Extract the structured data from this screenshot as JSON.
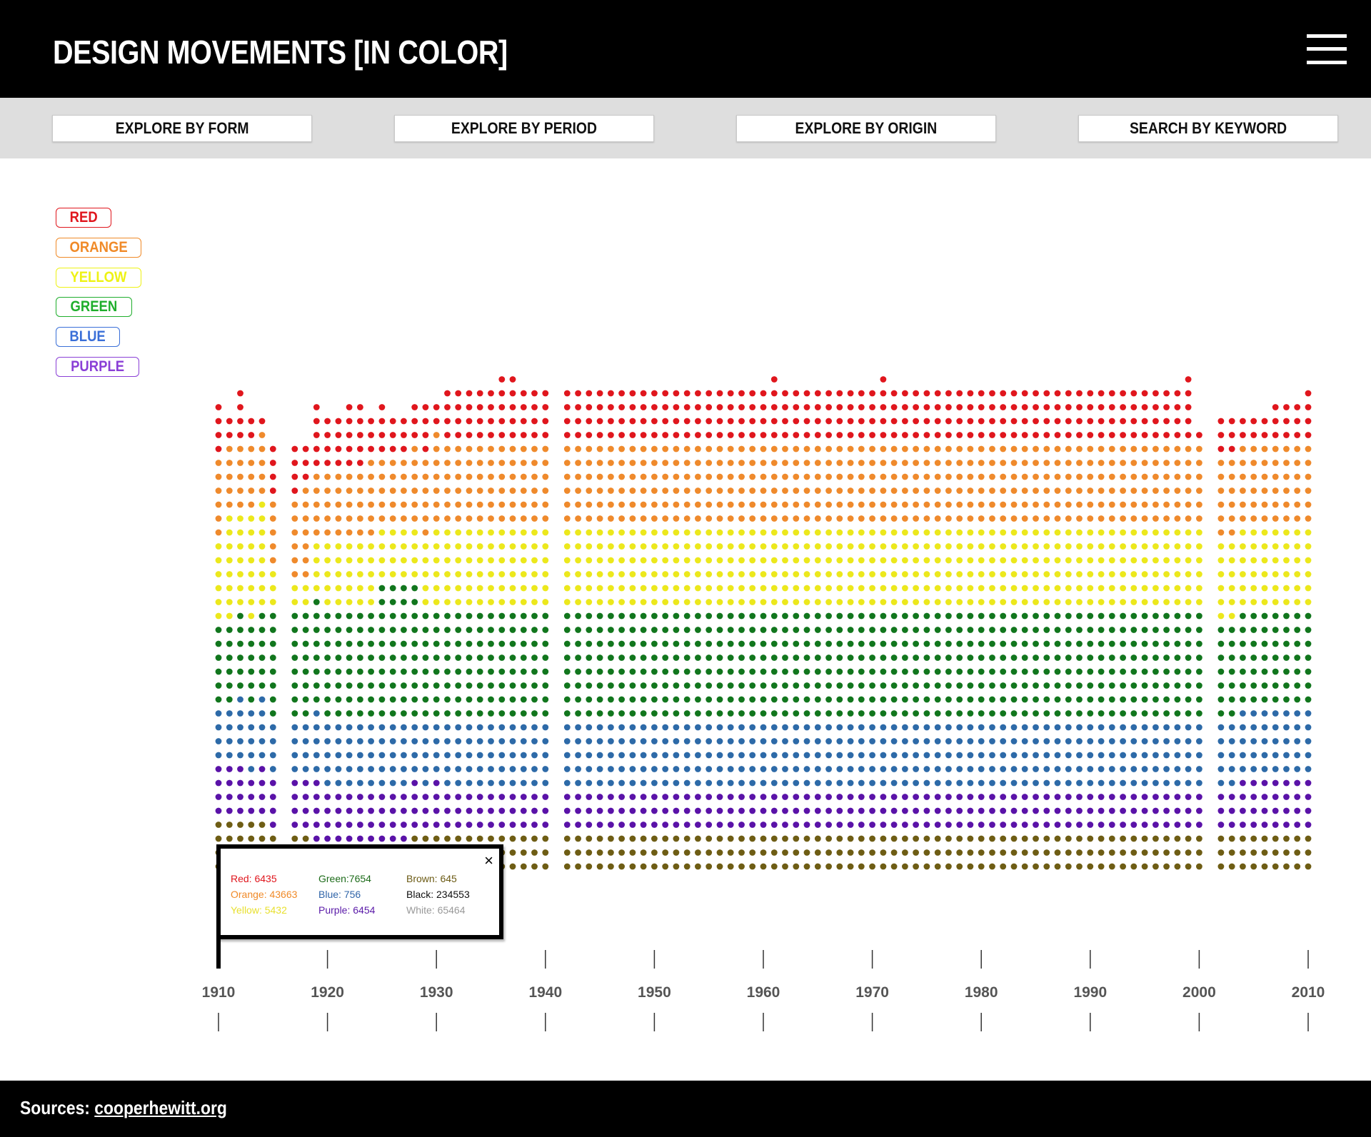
{
  "header": {
    "title": "DESIGN MOVEMENTS [IN COLOR]"
  },
  "nav": {
    "buttons": [
      "EXPLORE BY FORM",
      "EXPLORE BY PERIOD",
      "EXPLORE BY ORIGIN",
      "SEARCH BY KEYWORD"
    ]
  },
  "legend": [
    {
      "label": "RED",
      "color": "#e0161d"
    },
    {
      "label": "ORANGE",
      "color": "#f08a28"
    },
    {
      "label": "YELLOW",
      "color": "#eef214"
    },
    {
      "label": "GREEN",
      "color": "#1fae2c"
    },
    {
      "label": "BLUE",
      "color": "#3a6fd8"
    },
    {
      "label": "PURPLE",
      "color": "#8a3fd6"
    }
  ],
  "tooltip": {
    "rows": [
      {
        "label": "Red: 6435",
        "color": "#e0161d"
      },
      {
        "label": "Green:7654",
        "color": "#1d6b1a"
      },
      {
        "label": "Brown: 645",
        "color": "#6b5a14"
      },
      {
        "label": "Orange: 43663",
        "color": "#f08a28"
      },
      {
        "label": "Blue: 756",
        "color": "#2f64a8"
      },
      {
        "label": "Black: 234553",
        "color": "#111111"
      },
      {
        "label": "Yellow: 5432",
        "color": "#e8e030"
      },
      {
        "label": "Purple: 6454",
        "color": "#5a1aa8"
      },
      {
        "label": "White: 65464",
        "color": "#999999"
      }
    ],
    "close": "×"
  },
  "chart_data": {
    "type": "scatter",
    "description_kind": "stacked dot columns per year",
    "x_ticks": [
      "1910",
      "1920",
      "1930",
      "1940",
      "1950",
      "1960",
      "1970",
      "1980",
      "1990",
      "2000",
      "2010"
    ],
    "dot_colors": {
      "red": "#e0161d",
      "orange": "#ef8a2c",
      "yellow": "#ece81c",
      "green": "#11761d",
      "blue": "#2d6aa8",
      "purple": "#5a12a8",
      "brown": "#6e5d14"
    },
    "columns": [
      {
        "year": 1910,
        "red": 4,
        "orange": 6,
        "yellow": 6,
        "green": 6,
        "blue": 4,
        "purple": 4,
        "brown": 4
      },
      {
        "year": 1911,
        "red": 2,
        "orange": 5,
        "yellow": 8,
        "green": 6,
        "blue": 4,
        "purple": 4,
        "brown": 4
      },
      {
        "year": 1912,
        "red": 4,
        "orange": 5,
        "yellow": 7,
        "green": 6,
        "blue": 5,
        "purple": 4,
        "brown": 4
      },
      {
        "year": 1913,
        "red": 2,
        "orange": 5,
        "yellow": 8,
        "green": 6,
        "blue": 5,
        "purple": 3,
        "brown": 4
      },
      {
        "year": 1914,
        "red": 1,
        "orange": 5,
        "yellow": 8,
        "green": 6,
        "blue": 5,
        "purple": 4,
        "brown": 4
      },
      {
        "year": 1915,
        "red": 4,
        "orange": 5,
        "yellow": 3,
        "green": 8,
        "blue": 4,
        "purple": 4,
        "brown": 3
      },
      {
        "year": 1917,
        "red": 4,
        "orange": 6,
        "yellow": 2,
        "green": 8,
        "blue": 4,
        "purple": 4,
        "brown": 3
      },
      {
        "year": 1918,
        "red": 3,
        "orange": 7,
        "yellow": 2,
        "green": 8,
        "blue": 4,
        "purple": 4,
        "brown": 3
      },
      {
        "year": 1919,
        "red": 5,
        "orange": 5,
        "yellow": 4,
        "green": 8,
        "blue": 5,
        "purple": 5,
        "brown": 2
      },
      {
        "year": 1920,
        "red": 4,
        "orange": 5,
        "yellow": 5,
        "green": 8,
        "blue": 5,
        "purple": 4,
        "brown": 2
      },
      {
        "year": 1921,
        "red": 4,
        "orange": 5,
        "yellow": 5,
        "green": 8,
        "blue": 5,
        "purple": 4,
        "brown": 2
      },
      {
        "year": 1922,
        "red": 5,
        "orange": 5,
        "yellow": 5,
        "green": 8,
        "blue": 5,
        "purple": 4,
        "brown": 2
      },
      {
        "year": 1923,
        "red": 5,
        "orange": 5,
        "yellow": 5,
        "green": 8,
        "blue": 5,
        "purple": 4,
        "brown": 2
      },
      {
        "year": 1924,
        "red": 3,
        "orange": 6,
        "yellow": 5,
        "green": 8,
        "blue": 5,
        "purple": 4,
        "brown": 2
      },
      {
        "year": 1925,
        "red": 4,
        "orange": 5,
        "yellow": 4,
        "green": 10,
        "blue": 5,
        "purple": 4,
        "brown": 2
      },
      {
        "year": 1926,
        "red": 3,
        "orange": 5,
        "yellow": 4,
        "green": 10,
        "blue": 5,
        "purple": 4,
        "brown": 2
      },
      {
        "year": 1927,
        "red": 3,
        "orange": 5,
        "yellow": 4,
        "green": 10,
        "blue": 5,
        "purple": 4,
        "brown": 2
      },
      {
        "year": 1928,
        "red": 3,
        "orange": 6,
        "yellow": 4,
        "green": 10,
        "blue": 4,
        "purple": 4,
        "brown": 3
      },
      {
        "year": 1929,
        "red": 4,
        "orange": 6,
        "yellow": 5,
        "green": 8,
        "blue": 5,
        "purple": 3,
        "brown": 3
      },
      {
        "year": 1930,
        "red": 2,
        "orange": 7,
        "yellow": 6,
        "green": 8,
        "blue": 4,
        "purple": 4,
        "brown": 3
      },
      {
        "year": 1931,
        "red": 4,
        "orange": 6,
        "yellow": 6,
        "green": 8,
        "blue": 5,
        "purple": 3,
        "brown": 3
      },
      {
        "year": 1932,
        "red": 4,
        "orange": 6,
        "yellow": 6,
        "green": 8,
        "blue": 5,
        "purple": 3,
        "brown": 3
      },
      {
        "year": 1933,
        "red": 4,
        "orange": 6,
        "yellow": 6,
        "green": 8,
        "blue": 5,
        "purple": 3,
        "brown": 3
      },
      {
        "year": 1934,
        "red": 4,
        "orange": 6,
        "yellow": 6,
        "green": 8,
        "blue": 5,
        "purple": 3,
        "brown": 3
      },
      {
        "year": 1935,
        "red": 4,
        "orange": 6,
        "yellow": 6,
        "green": 8,
        "blue": 5,
        "purple": 3,
        "brown": 3
      },
      {
        "year": 1936,
        "red": 5,
        "orange": 6,
        "yellow": 6,
        "green": 8,
        "blue": 5,
        "purple": 3,
        "brown": 3
      },
      {
        "year": 1937,
        "red": 5,
        "orange": 6,
        "yellow": 6,
        "green": 8,
        "blue": 5,
        "purple": 3,
        "brown": 3
      },
      {
        "year": 1938,
        "red": 4,
        "orange": 6,
        "yellow": 6,
        "green": 8,
        "blue": 5,
        "purple": 3,
        "brown": 3
      },
      {
        "year": 1939,
        "red": 4,
        "orange": 6,
        "yellow": 6,
        "green": 8,
        "blue": 5,
        "purple": 3,
        "brown": 3
      },
      {
        "year": 1940,
        "red": 4,
        "orange": 6,
        "yellow": 6,
        "green": 8,
        "blue": 5,
        "purple": 3,
        "brown": 3
      },
      {
        "year": 1942,
        "red": 4,
        "orange": 6,
        "yellow": 6,
        "green": 8,
        "blue": 5,
        "purple": 3,
        "brown": 3
      },
      {
        "year": 1943,
        "red": 4,
        "orange": 6,
        "yellow": 6,
        "green": 8,
        "blue": 5,
        "purple": 3,
        "brown": 3
      },
      {
        "year": 1944,
        "red": 4,
        "orange": 6,
        "yellow": 6,
        "green": 8,
        "blue": 5,
        "purple": 3,
        "brown": 3
      },
      {
        "year": 1945,
        "red": 4,
        "orange": 6,
        "yellow": 6,
        "green": 8,
        "blue": 5,
        "purple": 3,
        "brown": 3
      },
      {
        "year": 1946,
        "red": 4,
        "orange": 6,
        "yellow": 6,
        "green": 8,
        "blue": 5,
        "purple": 3,
        "brown": 3
      },
      {
        "year": 1947,
        "red": 4,
        "orange": 6,
        "yellow": 6,
        "green": 8,
        "blue": 5,
        "purple": 3,
        "brown": 3
      },
      {
        "year": 1948,
        "red": 4,
        "orange": 6,
        "yellow": 6,
        "green": 8,
        "blue": 5,
        "purple": 3,
        "brown": 3
      },
      {
        "year": 1949,
        "red": 4,
        "orange": 6,
        "yellow": 6,
        "green": 8,
        "blue": 5,
        "purple": 3,
        "brown": 3
      },
      {
        "year": 1950,
        "red": 4,
        "orange": 6,
        "yellow": 6,
        "green": 8,
        "blue": 5,
        "purple": 3,
        "brown": 3
      },
      {
        "year": 1951,
        "red": 4,
        "orange": 6,
        "yellow": 6,
        "green": 8,
        "blue": 5,
        "purple": 3,
        "brown": 3
      },
      {
        "year": 1952,
        "red": 4,
        "orange": 6,
        "yellow": 6,
        "green": 8,
        "blue": 5,
        "purple": 3,
        "brown": 3
      },
      {
        "year": 1953,
        "red": 4,
        "orange": 6,
        "yellow": 6,
        "green": 8,
        "blue": 5,
        "purple": 3,
        "brown": 3
      },
      {
        "year": 1954,
        "red": 4,
        "orange": 6,
        "yellow": 6,
        "green": 8,
        "blue": 5,
        "purple": 3,
        "brown": 3
      },
      {
        "year": 1955,
        "red": 4,
        "orange": 6,
        "yellow": 6,
        "green": 8,
        "blue": 5,
        "purple": 3,
        "brown": 3
      },
      {
        "year": 1956,
        "red": 4,
        "orange": 6,
        "yellow": 6,
        "green": 8,
        "blue": 5,
        "purple": 3,
        "brown": 3
      },
      {
        "year": 1957,
        "red": 4,
        "orange": 6,
        "yellow": 6,
        "green": 8,
        "blue": 5,
        "purple": 3,
        "brown": 3
      },
      {
        "year": 1958,
        "red": 4,
        "orange": 6,
        "yellow": 6,
        "green": 8,
        "blue": 5,
        "purple": 3,
        "brown": 3
      },
      {
        "year": 1959,
        "red": 4,
        "orange": 6,
        "yellow": 6,
        "green": 8,
        "blue": 5,
        "purple": 3,
        "brown": 3
      },
      {
        "year": 1960,
        "red": 4,
        "orange": 6,
        "yellow": 6,
        "green": 8,
        "blue": 5,
        "purple": 3,
        "brown": 3
      },
      {
        "year": 1961,
        "red": 5,
        "orange": 6,
        "yellow": 6,
        "green": 8,
        "blue": 5,
        "purple": 3,
        "brown": 3
      },
      {
        "year": 1962,
        "red": 4,
        "orange": 6,
        "yellow": 6,
        "green": 8,
        "blue": 5,
        "purple": 3,
        "brown": 3
      },
      {
        "year": 1963,
        "red": 4,
        "orange": 6,
        "yellow": 6,
        "green": 8,
        "blue": 5,
        "purple": 3,
        "brown": 3
      },
      {
        "year": 1964,
        "red": 4,
        "orange": 6,
        "yellow": 6,
        "green": 8,
        "blue": 5,
        "purple": 3,
        "brown": 3
      },
      {
        "year": 1965,
        "red": 4,
        "orange": 6,
        "yellow": 6,
        "green": 8,
        "blue": 5,
        "purple": 3,
        "brown": 3
      },
      {
        "year": 1966,
        "red": 4,
        "orange": 6,
        "yellow": 6,
        "green": 8,
        "blue": 5,
        "purple": 3,
        "brown": 3
      },
      {
        "year": 1967,
        "red": 4,
        "orange": 6,
        "yellow": 6,
        "green": 8,
        "blue": 5,
        "purple": 3,
        "brown": 3
      },
      {
        "year": 1968,
        "red": 4,
        "orange": 6,
        "yellow": 6,
        "green": 8,
        "blue": 5,
        "purple": 3,
        "brown": 3
      },
      {
        "year": 1969,
        "red": 4,
        "orange": 6,
        "yellow": 6,
        "green": 8,
        "blue": 5,
        "purple": 3,
        "brown": 3
      },
      {
        "year": 1970,
        "red": 4,
        "orange": 6,
        "yellow": 6,
        "green": 8,
        "blue": 5,
        "purple": 3,
        "brown": 3
      },
      {
        "year": 1971,
        "red": 5,
        "orange": 6,
        "yellow": 6,
        "green": 8,
        "blue": 5,
        "purple": 3,
        "brown": 3
      },
      {
        "year": 1972,
        "red": 4,
        "orange": 6,
        "yellow": 6,
        "green": 8,
        "blue": 5,
        "purple": 3,
        "brown": 3
      },
      {
        "year": 1973,
        "red": 4,
        "orange": 6,
        "yellow": 6,
        "green": 8,
        "blue": 5,
        "purple": 3,
        "brown": 3
      },
      {
        "year": 1974,
        "red": 4,
        "orange": 6,
        "yellow": 6,
        "green": 8,
        "blue": 5,
        "purple": 3,
        "brown": 3
      },
      {
        "year": 1975,
        "red": 4,
        "orange": 6,
        "yellow": 6,
        "green": 8,
        "blue": 5,
        "purple": 3,
        "brown": 3
      },
      {
        "year": 1976,
        "red": 4,
        "orange": 6,
        "yellow": 6,
        "green": 8,
        "blue": 5,
        "purple": 3,
        "brown": 3
      },
      {
        "year": 1977,
        "red": 4,
        "orange": 6,
        "yellow": 6,
        "green": 8,
        "blue": 5,
        "purple": 3,
        "brown": 3
      },
      {
        "year": 1978,
        "red": 4,
        "orange": 6,
        "yellow": 6,
        "green": 8,
        "blue": 5,
        "purple": 3,
        "brown": 3
      },
      {
        "year": 1979,
        "red": 4,
        "orange": 6,
        "yellow": 6,
        "green": 8,
        "blue": 5,
        "purple": 3,
        "brown": 3
      },
      {
        "year": 1980,
        "red": 4,
        "orange": 6,
        "yellow": 6,
        "green": 8,
        "blue": 5,
        "purple": 3,
        "brown": 3
      },
      {
        "year": 1981,
        "red": 4,
        "orange": 6,
        "yellow": 6,
        "green": 8,
        "blue": 5,
        "purple": 3,
        "brown": 3
      },
      {
        "year": 1982,
        "red": 4,
        "orange": 6,
        "yellow": 6,
        "green": 8,
        "blue": 5,
        "purple": 3,
        "brown": 3
      },
      {
        "year": 1983,
        "red": 4,
        "orange": 6,
        "yellow": 6,
        "green": 8,
        "blue": 5,
        "purple": 3,
        "brown": 3
      },
      {
        "year": 1984,
        "red": 4,
        "orange": 6,
        "yellow": 6,
        "green": 8,
        "blue": 5,
        "purple": 3,
        "brown": 3
      },
      {
        "year": 1985,
        "red": 4,
        "orange": 6,
        "yellow": 6,
        "green": 8,
        "blue": 5,
        "purple": 3,
        "brown": 3
      },
      {
        "year": 1986,
        "red": 4,
        "orange": 6,
        "yellow": 6,
        "green": 8,
        "blue": 5,
        "purple": 3,
        "brown": 3
      },
      {
        "year": 1987,
        "red": 4,
        "orange": 6,
        "yellow": 6,
        "green": 8,
        "blue": 5,
        "purple": 3,
        "brown": 3
      },
      {
        "year": 1988,
        "red": 4,
        "orange": 6,
        "yellow": 6,
        "green": 8,
        "blue": 5,
        "purple": 3,
        "brown": 3
      },
      {
        "year": 1989,
        "red": 4,
        "orange": 6,
        "yellow": 6,
        "green": 8,
        "blue": 5,
        "purple": 3,
        "brown": 3
      },
      {
        "year": 1990,
        "red": 4,
        "orange": 6,
        "yellow": 6,
        "green": 8,
        "blue": 5,
        "purple": 3,
        "brown": 3
      },
      {
        "year": 1991,
        "red": 4,
        "orange": 6,
        "yellow": 6,
        "green": 8,
        "blue": 5,
        "purple": 3,
        "brown": 3
      },
      {
        "year": 1992,
        "red": 4,
        "orange": 6,
        "yellow": 6,
        "green": 8,
        "blue": 5,
        "purple": 3,
        "brown": 3
      },
      {
        "year": 1993,
        "red": 4,
        "orange": 6,
        "yellow": 6,
        "green": 8,
        "blue": 5,
        "purple": 3,
        "brown": 3
      },
      {
        "year": 1994,
        "red": 4,
        "orange": 6,
        "yellow": 6,
        "green": 8,
        "blue": 5,
        "purple": 3,
        "brown": 3
      },
      {
        "year": 1995,
        "red": 4,
        "orange": 6,
        "yellow": 6,
        "green": 8,
        "blue": 5,
        "purple": 3,
        "brown": 3
      },
      {
        "year": 1996,
        "red": 4,
        "orange": 6,
        "yellow": 6,
        "green": 8,
        "blue": 5,
        "purple": 3,
        "brown": 3
      },
      {
        "year": 1997,
        "red": 4,
        "orange": 6,
        "yellow": 6,
        "green": 8,
        "blue": 5,
        "purple": 3,
        "brown": 3
      },
      {
        "year": 1998,
        "red": 4,
        "orange": 6,
        "yellow": 6,
        "green": 8,
        "blue": 5,
        "purple": 3,
        "brown": 3
      },
      {
        "year": 1999,
        "red": 5,
        "orange": 6,
        "yellow": 6,
        "green": 8,
        "blue": 5,
        "purple": 3,
        "brown": 3
      },
      {
        "year": 2000,
        "red": 1,
        "orange": 6,
        "yellow": 6,
        "green": 8,
        "blue": 5,
        "purple": 3,
        "brown": 3
      },
      {
        "year": 2002,
        "red": 3,
        "orange": 6,
        "yellow": 6,
        "green": 7,
        "blue": 5,
        "purple": 3,
        "brown": 3
      },
      {
        "year": 2003,
        "red": 3,
        "orange": 6,
        "yellow": 6,
        "green": 7,
        "blue": 5,
        "purple": 3,
        "brown": 3
      },
      {
        "year": 2004,
        "red": 2,
        "orange": 6,
        "yellow": 6,
        "green": 7,
        "blue": 5,
        "purple": 4,
        "brown": 3
      },
      {
        "year": 2005,
        "red": 2,
        "orange": 6,
        "yellow": 6,
        "green": 7,
        "blue": 5,
        "purple": 4,
        "brown": 3
      },
      {
        "year": 2006,
        "red": 2,
        "orange": 6,
        "yellow": 6,
        "green": 7,
        "blue": 5,
        "purple": 4,
        "brown": 3
      },
      {
        "year": 2007,
        "red": 3,
        "orange": 6,
        "yellow": 6,
        "green": 7,
        "blue": 5,
        "purple": 4,
        "brown": 3
      },
      {
        "year": 2008,
        "red": 3,
        "orange": 6,
        "yellow": 6,
        "green": 7,
        "blue": 5,
        "purple": 4,
        "brown": 3
      },
      {
        "year": 2009,
        "red": 3,
        "orange": 6,
        "yellow": 6,
        "green": 7,
        "blue": 5,
        "purple": 4,
        "brown": 3
      },
      {
        "year": 2010,
        "red": 4,
        "orange": 6,
        "yellow": 6,
        "green": 7,
        "blue": 5,
        "purple": 4,
        "brown": 3
      }
    ]
  },
  "footer": {
    "sources_label": "Sources:",
    "sources_link": "cooperhewitt.org"
  }
}
